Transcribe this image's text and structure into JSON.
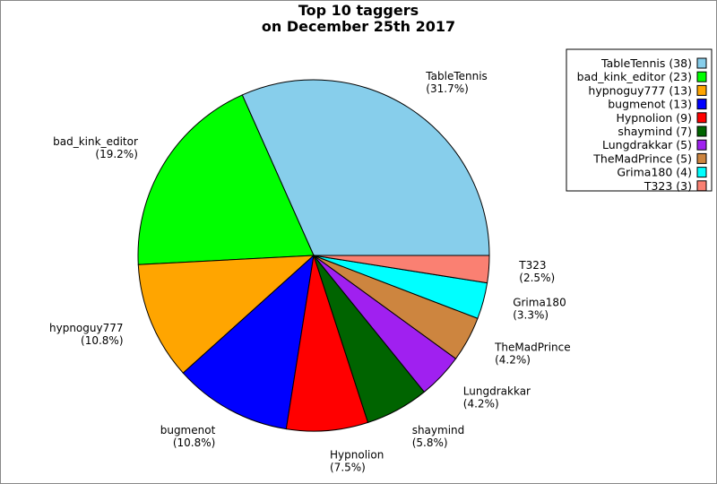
{
  "chart_data": {
    "type": "pie",
    "title": "Top 10 taggers",
    "subtitle": "on December 25th 2017",
    "slices": [
      {
        "name": "TableTennis",
        "value": 38,
        "percent_label": "(31.7%)",
        "legend_label": "TableTennis (38)",
        "color": "#87ceeb"
      },
      {
        "name": "bad_kink_editor",
        "value": 23,
        "percent_label": "(19.2%)",
        "legend_label": "bad_kink_editor (23)",
        "color": "#00ff00"
      },
      {
        "name": "hypnoguy777",
        "value": 13,
        "percent_label": "(10.8%)",
        "legend_label": "hypnoguy777 (13)",
        "color": "#ffa500"
      },
      {
        "name": "bugmenot",
        "value": 13,
        "percent_label": "(10.8%)",
        "legend_label": "bugmenot (13)",
        "color": "#0000ff"
      },
      {
        "name": "Hypnolion",
        "value": 9,
        "percent_label": "(7.5%)",
        "legend_label": "Hypnolion (9)",
        "color": "#ff0000"
      },
      {
        "name": "shaymind",
        "value": 7,
        "percent_label": "(5.8%)",
        "legend_label": "shaymind (7)",
        "color": "#006400"
      },
      {
        "name": "Lungdrakkar",
        "value": 5,
        "percent_label": "(4.2%)",
        "legend_label": "Lungdrakkar (5)",
        "color": "#a020f0"
      },
      {
        "name": "TheMadPrince",
        "value": 5,
        "percent_label": "(4.2%)",
        "legend_label": "TheMadPrince (5)",
        "color": "#cd853f"
      },
      {
        "name": "Grima180",
        "value": 4,
        "percent_label": "(3.3%)",
        "legend_label": "Grima180 (4)",
        "color": "#00ffff"
      },
      {
        "name": "T323",
        "value": 3,
        "percent_label": "(2.5%)",
        "legend_label": "T323 (3)",
        "color": "#fa8072"
      }
    ],
    "legend_position": "top-right"
  }
}
